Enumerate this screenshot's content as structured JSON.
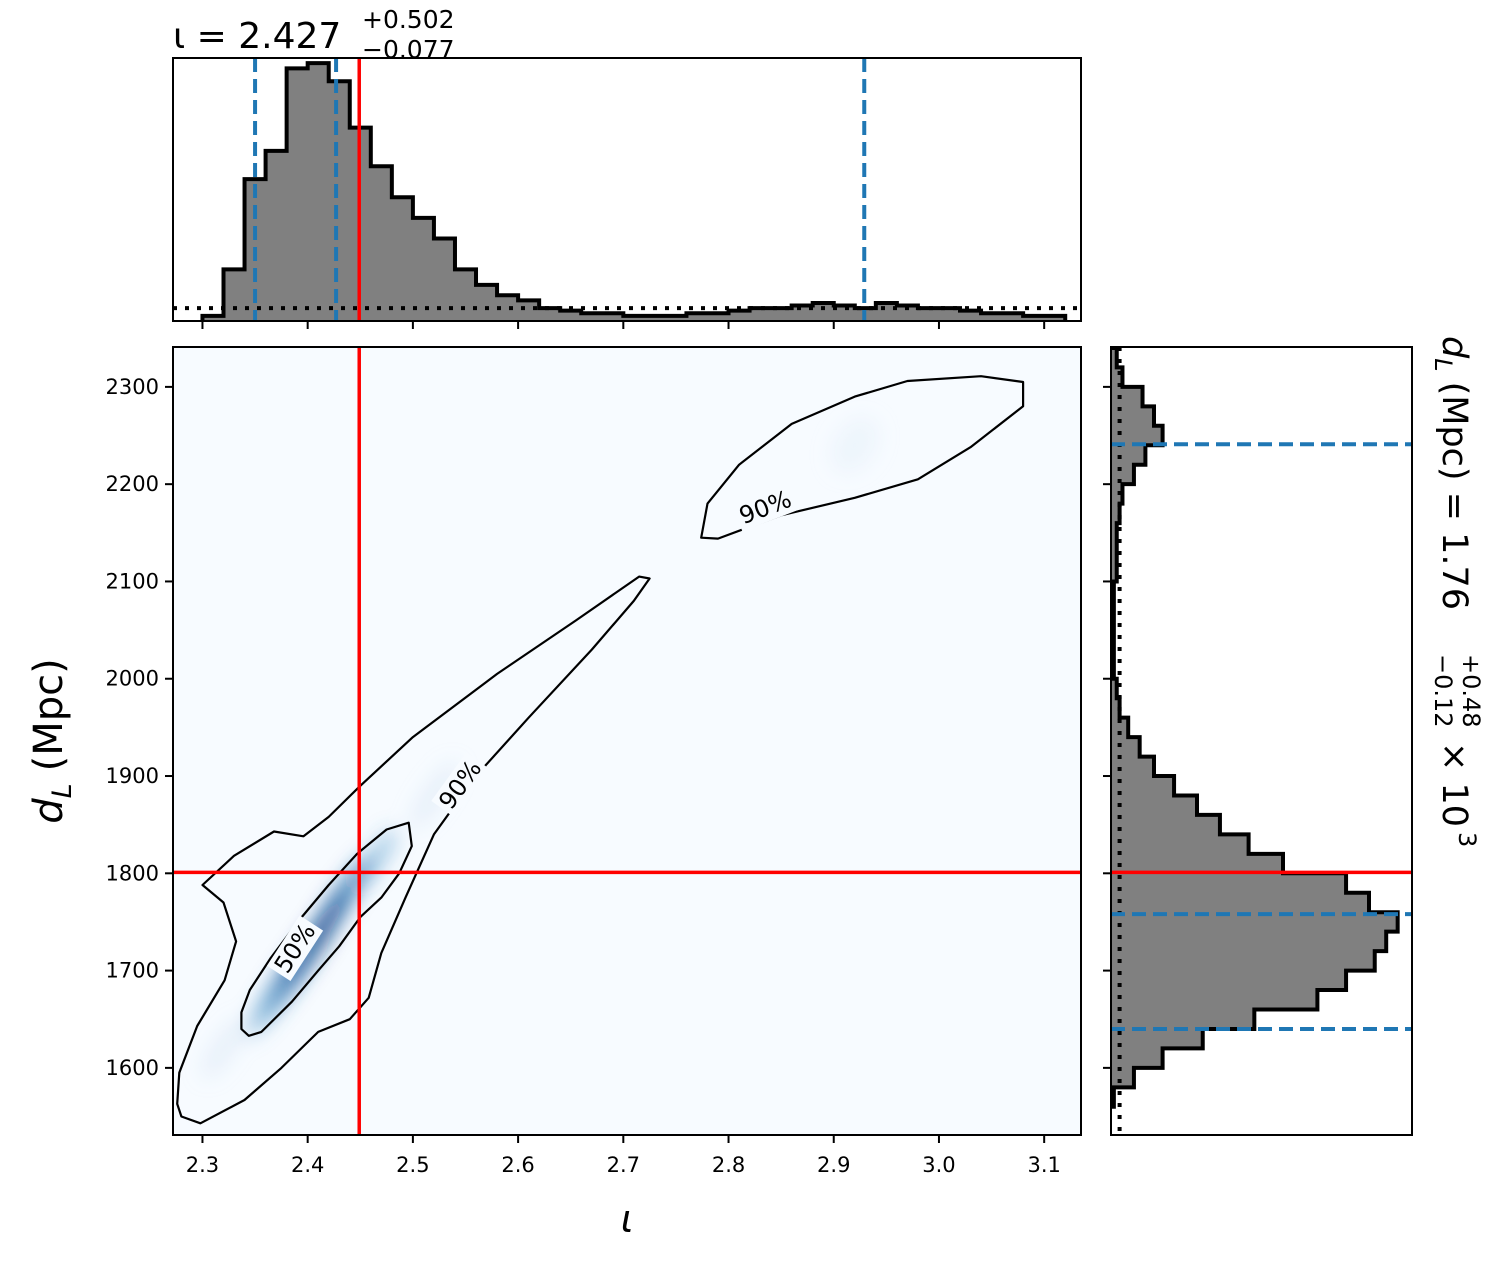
{
  "chart_data": [
    {
      "type": "heatmap",
      "panel": "joint",
      "xlabel": "ι",
      "ylabel_main": "d",
      "ylabel_sub": "L",
      "ylabel_unit": "(Mpc)",
      "xlim": [
        2.272,
        3.135
      ],
      "ylim": [
        1531,
        2341
      ],
      "xticks": [
        2.3,
        2.4,
        2.5,
        2.6,
        2.7,
        2.8,
        2.9,
        3.0,
        3.1
      ],
      "xtick_labels": [
        "2.3",
        "2.4",
        "2.5",
        "2.6",
        "2.7",
        "2.8",
        "2.9",
        "3.0",
        "3.1"
      ],
      "yticks": [
        1600,
        1700,
        1800,
        1900,
        2000,
        2100,
        2200,
        2300
      ],
      "ytick_labels": [
        "1600",
        "1700",
        "1800",
        "1900",
        "2000",
        "2100",
        "2200",
        "2300"
      ],
      "truth": {
        "x": 2.449,
        "y": 1801,
        "color": "#ff0000"
      },
      "contours": [
        {
          "level": "50%",
          "points": [
            [
              2.337,
              1640
            ],
            [
              2.344,
              1633
            ],
            [
              2.356,
              1637
            ],
            [
              2.385,
              1668
            ],
            [
              2.41,
              1700
            ],
            [
              2.43,
              1725
            ],
            [
              2.45,
              1755
            ],
            [
              2.47,
              1775
            ],
            [
              2.487,
              1800
            ],
            [
              2.499,
              1828
            ],
            [
              2.496,
              1852
            ],
            [
              2.475,
              1845
            ],
            [
              2.447,
              1820
            ],
            [
              2.42,
              1788
            ],
            [
              2.392,
              1752
            ],
            [
              2.365,
              1713
            ],
            [
              2.345,
              1680
            ],
            [
              2.337,
              1657
            ]
          ]
        },
        {
          "level": "90%",
          "points": [
            [
              2.276,
              1563
            ],
            [
              2.28,
              1550
            ],
            [
              2.298,
              1543
            ],
            [
              2.34,
              1567
            ],
            [
              2.375,
              1600
            ],
            [
              2.41,
              1637
            ],
            [
              2.44,
              1650
            ],
            [
              2.458,
              1672
            ],
            [
              2.47,
              1718
            ],
            [
              2.493,
              1775
            ],
            [
              2.52,
              1840
            ],
            [
              2.56,
              1900
            ],
            [
              2.61,
              1960
            ],
            [
              2.67,
              2030
            ],
            [
              2.71,
              2080
            ],
            [
              2.725,
              2103
            ],
            [
              2.715,
              2105
            ],
            [
              2.655,
              2060
            ],
            [
              2.58,
              2005
            ],
            [
              2.5,
              1940
            ],
            [
              2.45,
              1890
            ],
            [
              2.42,
              1858
            ],
            [
              2.396,
              1838
            ],
            [
              2.368,
              1843
            ],
            [
              2.33,
              1818
            ],
            [
              2.3,
              1788
            ],
            [
              2.32,
              1770
            ],
            [
              2.332,
              1730
            ],
            [
              2.321,
              1690
            ],
            [
              2.295,
              1643
            ],
            [
              2.278,
              1595
            ]
          ]
        },
        {
          "level": "90%",
          "points": [
            [
              2.774,
              2145
            ],
            [
              2.79,
              2144
            ],
            [
              2.85,
              2168
            ],
            [
              2.92,
              2186
            ],
            [
              2.98,
              2205
            ],
            [
              3.03,
              2238
            ],
            [
              3.08,
              2280
            ],
            [
              3.08,
              2305
            ],
            [
              3.04,
              2311
            ],
            [
              2.97,
              2306
            ],
            [
              2.92,
              2290
            ],
            [
              2.86,
              2262
            ],
            [
              2.81,
              2220
            ],
            [
              2.78,
              2180
            ]
          ]
        }
      ],
      "contour_labels": [
        {
          "text": "90%",
          "x": 2.545,
          "y": 1891,
          "angle": -54
        },
        {
          "text": "90%",
          "x": 2.835,
          "y": 2176,
          "angle": -21
        },
        {
          "text": "50%",
          "x": 2.388,
          "y": 1723,
          "angle": -57
        }
      ],
      "colormap": "Blues"
    },
    {
      "type": "bar",
      "panel": "marginal-iota",
      "orientation": "vertical",
      "title_main": "ι = 2.427",
      "title_sup": "+0.502",
      "title_sub": "−0.077",
      "xlim": [
        2.272,
        3.135
      ],
      "ylim": [
        0,
        1.02
      ],
      "bin_start": 2.3,
      "bin_width": 0.02,
      "values": [
        0.02,
        0.2,
        0.55,
        0.66,
        0.98,
        1.0,
        0.93,
        0.75,
        0.6,
        0.48,
        0.4,
        0.32,
        0.2,
        0.14,
        0.1,
        0.08,
        0.05,
        0.04,
        0.03,
        0.03,
        0.02,
        0.02,
        0.02,
        0.03,
        0.03,
        0.04,
        0.05,
        0.05,
        0.06,
        0.07,
        0.06,
        0.05,
        0.07,
        0.06,
        0.05,
        0.05,
        0.04,
        0.03,
        0.03,
        0.02,
        0.02
      ],
      "prior_level": 0.05,
      "quantiles": [
        2.35,
        2.427,
        2.929
      ],
      "truth": 2.449,
      "xticks": [
        2.3,
        2.4,
        2.5,
        2.6,
        2.7,
        2.8,
        2.9,
        3.0,
        3.1
      ]
    },
    {
      "type": "bar",
      "panel": "marginal-dL",
      "orientation": "horizontal",
      "title_main": "d",
      "title_sub_L": "L",
      "title_rest": "(Mpc) = 1.76",
      "title_sup": "+0.48",
      "title_sub": "−0.12",
      "title_exp": "× 10",
      "title_exp_power": "3",
      "ylim": [
        1531,
        2341
      ],
      "xlim": [
        0,
        1.05
      ],
      "bin_start": 1560,
      "bin_width": 20,
      "values": [
        0.01,
        0.08,
        0.18,
        0.32,
        0.5,
        0.72,
        0.82,
        0.92,
        0.96,
        1.0,
        0.9,
        0.82,
        0.6,
        0.48,
        0.38,
        0.3,
        0.22,
        0.15,
        0.1,
        0.06,
        0.03,
        0.02,
        0.01,
        0.01,
        0.01,
        0.01,
        0.01,
        0.02,
        0.02,
        0.02,
        0.03,
        0.04,
        0.08,
        0.12,
        0.18,
        0.15,
        0.11,
        0.04,
        0.02
      ],
      "prior_level": 0.03,
      "quantiles": [
        1640,
        1758,
        2241
      ],
      "truth": 1801,
      "yticks": [
        1600,
        1700,
        1800,
        1900,
        2000,
        2100,
        2200,
        2300
      ]
    }
  ],
  "colors": {
    "hist_fill": "#808080",
    "hist_edge": "#000000",
    "quantile": "#1f77b4",
    "truth": "#ff0000"
  }
}
